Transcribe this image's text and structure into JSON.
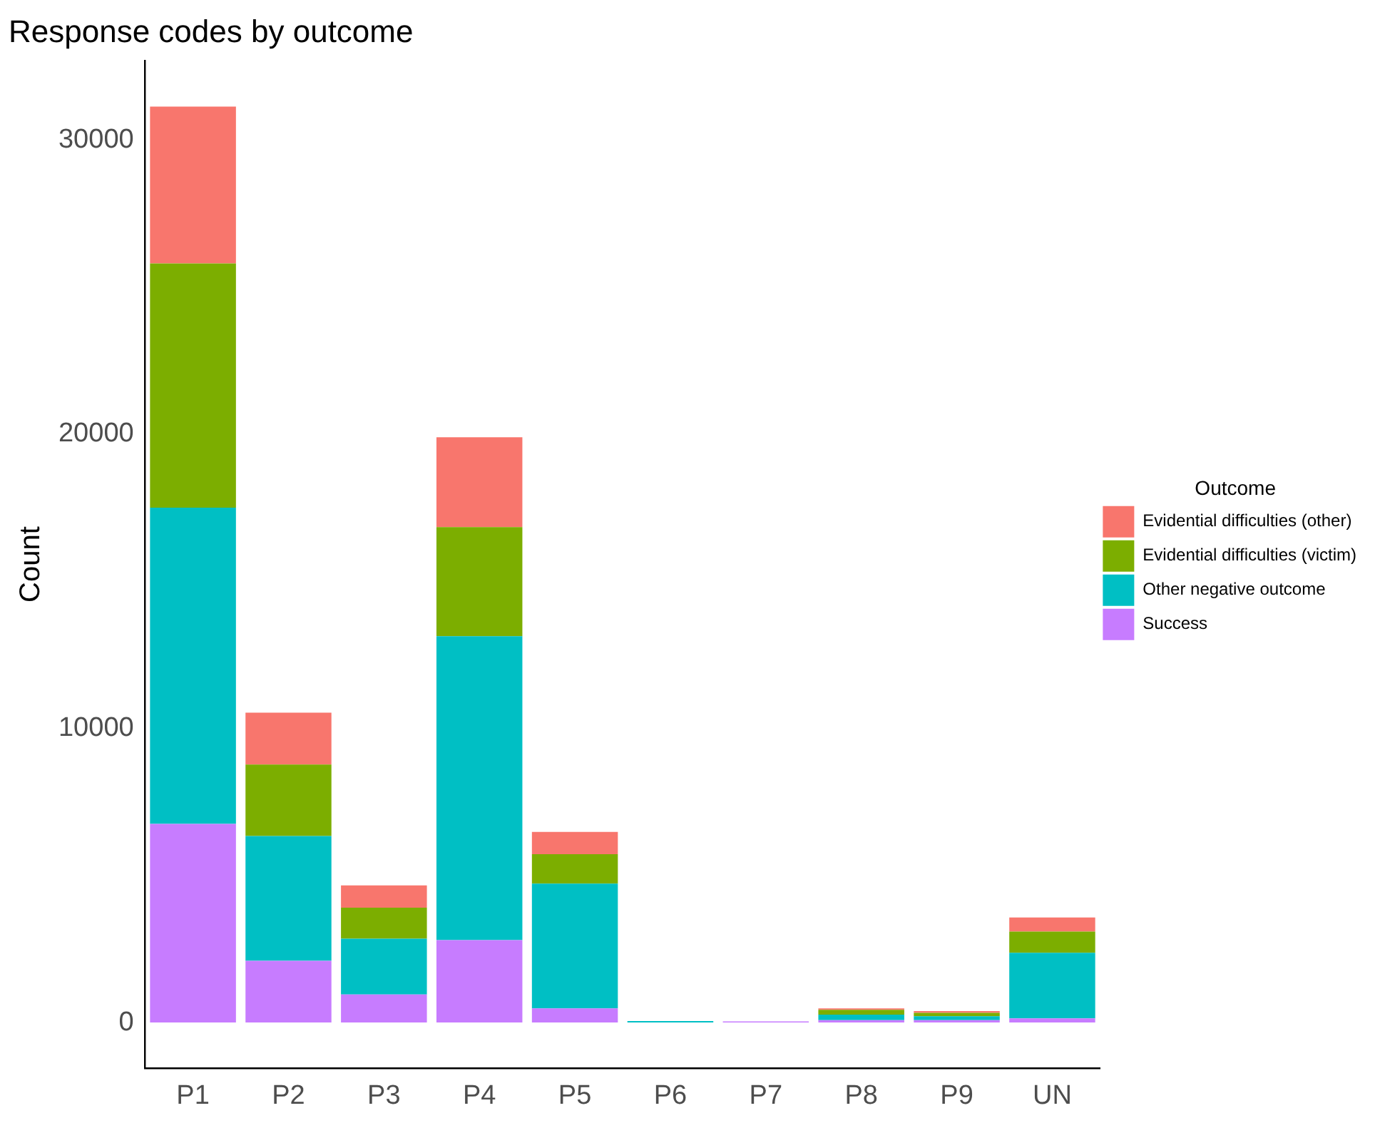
{
  "chart_data": {
    "type": "bar",
    "title": "Response codes by outcome",
    "ylabel": "Count",
    "legend_title": "Outcome",
    "categories": [
      "P1",
      "P2",
      "P3",
      "P4",
      "P5",
      "P6",
      "P7",
      "P8",
      "P9",
      "UN"
    ],
    "stacked": true,
    "series": [
      {
        "name": "Success",
        "color": "#c77cff",
        "values": [
          6750,
          2100,
          950,
          2800,
          480,
          null,
          40,
          80,
          80,
          140
        ]
      },
      {
        "name": "Other negative outcome",
        "color": "#00bfc4",
        "values": [
          10750,
          4240,
          1900,
          10330,
          4240,
          50,
          0,
          190,
          130,
          2230
        ]
      },
      {
        "name": "Evidential difficulties (victim)",
        "color": "#7cae00",
        "values": [
          8300,
          2430,
          1050,
          3710,
          1000,
          0,
          0,
          160,
          120,
          720
        ]
      },
      {
        "name": "Evidential difficulties (other)",
        "color": "#f8766d",
        "values": [
          5330,
          1760,
          760,
          3050,
          760,
          0,
          0,
          50,
          60,
          480
        ]
      }
    ],
    "ylim": [
      -1560,
      32700
    ],
    "yticks": [
      0,
      10000,
      20000,
      30000
    ],
    "grid": false,
    "legend": "right"
  }
}
